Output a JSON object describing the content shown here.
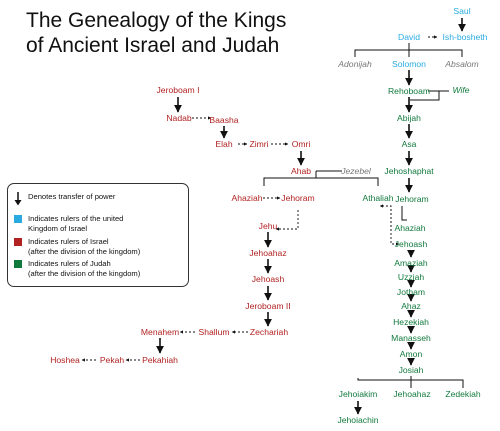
{
  "title": {
    "line1": "The Genealogy of the Kings",
    "line2": "of Ancient Israel and Judah"
  },
  "colors": {
    "united": "#29abe2",
    "israel": "#b22222",
    "judah": "#117a3d",
    "other": "#777777"
  },
  "legend": {
    "transfer_label": "Denotes transfer of power",
    "united_label": "Indicates rulers of the united\nKingdom of Israel",
    "israel_label": "Indicates rulers of Israel\n(after the division of the kingdom)",
    "judah_label": "Indicates rulers of Judah\n(after the division of the kingdom)"
  },
  "rulers": {
    "saul": "Saul",
    "david": "David",
    "ish_bosheth": "Ish-bosheth",
    "adonijah": "Adonijah",
    "solomon": "Solomon",
    "absalom": "Absalom",
    "rehoboam": "Rehoboam",
    "wife": "Wife",
    "abijah": "Abijah",
    "asa": "Asa",
    "jehoshaphat": "Jehoshaphat",
    "jehoram_judah": "Jehoram",
    "ahaziah_judah": "Ahaziah",
    "jehoash_judah": "Jehoash",
    "amaziah": "Amaziah",
    "uzziah": "Uzziah",
    "jotham": "Jotham",
    "ahaz": "Ahaz",
    "hezekiah": "Hezekiah",
    "manasseh": "Manasseh",
    "amon": "Amon",
    "josiah": "Josiah",
    "jehoiakim": "Jehoiakim",
    "jehoahaz_judah": "Jehoahaz",
    "zedekiah": "Zedekiah",
    "jehoiachin": "Jehoiachin",
    "jeroboam_i": "Jeroboam I",
    "nadab": "Nadab",
    "baasha": "Baasha",
    "elah": "Elah",
    "zimri": "Zimri",
    "omri": "Omri",
    "ahab": "Ahab",
    "jezebel": "Jezebel",
    "ahaziah_israel": "Ahaziah",
    "jehoram_israel": "Jehoram",
    "athaliah": "Athaliah",
    "jehu": "Jehu",
    "jehoahaz_israel": "Jehoahaz",
    "jehoash_israel": "Jehoash",
    "jeroboam_ii": "Jeroboam II",
    "menahem": "Menahem",
    "shallum": "Shallum",
    "zechariah": "Zechariah",
    "hoshea": "Hoshea",
    "pekah": "Pekah",
    "pekahiah": "Pekahiah"
  }
}
